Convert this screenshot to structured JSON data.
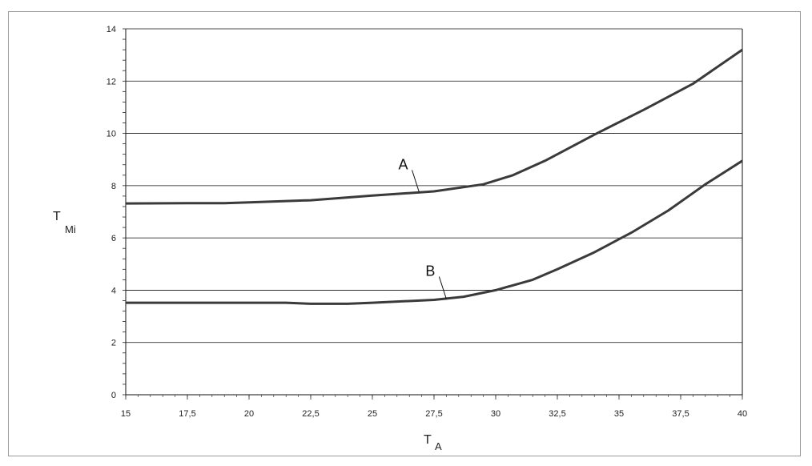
{
  "chart_data": {
    "type": "line",
    "xlabel": {
      "main": "T",
      "sub": "A"
    },
    "ylabel": {
      "main": "T",
      "sub": "Mi"
    },
    "xlim": [
      15,
      40
    ],
    "ylim": [
      0,
      14
    ],
    "x_ticks": [
      "15",
      "17,5",
      "20",
      "22,5",
      "25",
      "27,5",
      "30",
      "32,5",
      "35",
      "37,5",
      "40"
    ],
    "y_ticks": [
      "0",
      "2",
      "4",
      "6",
      "8",
      "10",
      "12",
      "14"
    ],
    "grid": "horizontal",
    "series": [
      {
        "name": "A",
        "color": "#3a3a3a",
        "points": [
          [
            15,
            7.32
          ],
          [
            17.5,
            7.33
          ],
          [
            19,
            7.33
          ],
          [
            20,
            7.36
          ],
          [
            22.5,
            7.44
          ],
          [
            25,
            7.62
          ],
          [
            27.5,
            7.78
          ],
          [
            29.5,
            8.05
          ],
          [
            30.7,
            8.4
          ],
          [
            32,
            8.95
          ],
          [
            34,
            9.95
          ],
          [
            36,
            10.9
          ],
          [
            38,
            11.9
          ],
          [
            40,
            13.2
          ]
        ],
        "label_anchor": [
          26.9,
          7.74
        ]
      },
      {
        "name": "B",
        "color": "#3a3a3a",
        "points": [
          [
            15,
            3.52
          ],
          [
            17.5,
            3.52
          ],
          [
            20,
            3.52
          ],
          [
            21.5,
            3.52
          ],
          [
            22.5,
            3.48
          ],
          [
            24,
            3.48
          ],
          [
            25,
            3.52
          ],
          [
            27.5,
            3.63
          ],
          [
            28.7,
            3.75
          ],
          [
            30,
            4.0
          ],
          [
            31.5,
            4.4
          ],
          [
            32.5,
            4.8
          ],
          [
            34,
            5.45
          ],
          [
            35.5,
            6.2
          ],
          [
            37,
            7.05
          ],
          [
            38.5,
            8.05
          ],
          [
            40,
            8.95
          ]
        ],
        "label_anchor": [
          28,
          3.66
        ]
      }
    ]
  }
}
